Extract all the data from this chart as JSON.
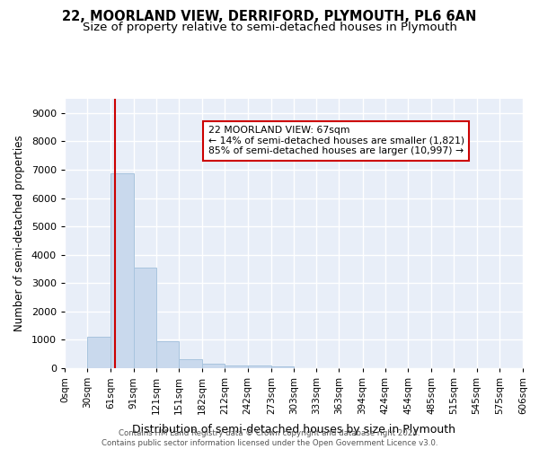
{
  "title1": "22, MOORLAND VIEW, DERRIFORD, PLYMOUTH, PL6 6AN",
  "title2": "Size of property relative to semi-detached houses in Plymouth",
  "xlabel": "Distribution of semi-detached houses by size in Plymouth",
  "ylabel": "Number of semi-detached properties",
  "footnote": "Contains HM Land Registry data © Crown copyright and database right 2024.\nContains public sector information licensed under the Open Government Licence v3.0.",
  "bar_color": "#c9d9ed",
  "bar_edge_color": "#a8c4de",
  "bin_edges": [
    0,
    30,
    61,
    91,
    121,
    151,
    182,
    212,
    242,
    273,
    303,
    333,
    363,
    394,
    424,
    454,
    485,
    515,
    545,
    575,
    606
  ],
  "bar_heights": [
    0,
    1120,
    6880,
    3560,
    960,
    330,
    170,
    110,
    80,
    60,
    0,
    0,
    0,
    0,
    0,
    0,
    0,
    0,
    0,
    0
  ],
  "tick_labels": [
    "0sqm",
    "30sqm",
    "61sqm",
    "91sqm",
    "121sqm",
    "151sqm",
    "182sqm",
    "212sqm",
    "242sqm",
    "273sqm",
    "303sqm",
    "333sqm",
    "363sqm",
    "394sqm",
    "424sqm",
    "454sqm",
    "485sqm",
    "515sqm",
    "545sqm",
    "575sqm",
    "606sqm"
  ],
  "property_size": 67,
  "annotation_text": "22 MOORLAND VIEW: 67sqm\n← 14% of semi-detached houses are smaller (1,821)\n85% of semi-detached houses are larger (10,997) →",
  "annotation_box_color": "#ffffff",
  "annotation_box_edge_color": "#cc0000",
  "red_line_x": 67,
  "ylim": [
    0,
    9500
  ],
  "yticks": [
    0,
    1000,
    2000,
    3000,
    4000,
    5000,
    6000,
    7000,
    8000,
    9000
  ],
  "background_color": "#e8eef8",
  "grid_color": "#ffffff",
  "title1_fontsize": 10.5,
  "title2_fontsize": 9.5
}
